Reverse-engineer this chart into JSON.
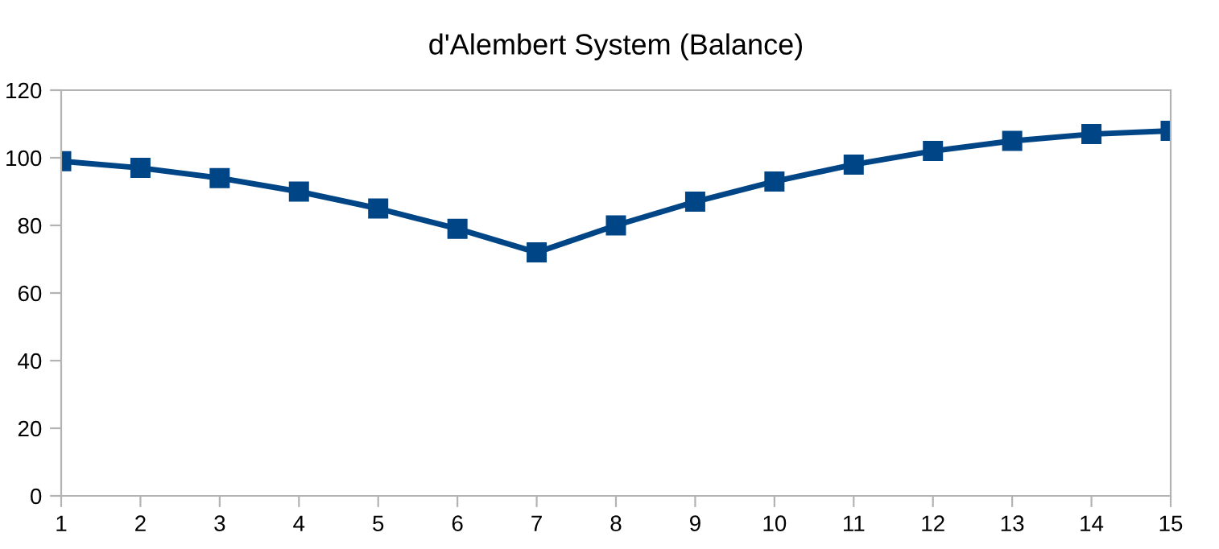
{
  "chart_data": {
    "type": "line",
    "title": "d'Alembert System (Balance)",
    "x": [
      1,
      2,
      3,
      4,
      5,
      6,
      7,
      8,
      9,
      10,
      11,
      12,
      13,
      14,
      15
    ],
    "series": [
      {
        "color": "#004586",
        "values": [
          99,
          97,
          94,
          90,
          85,
          79,
          72,
          80,
          87,
          93,
          98,
          102,
          105,
          107,
          108
        ]
      }
    ],
    "xlim": [
      1,
      15
    ],
    "xticks": [
      1,
      2,
      3,
      4,
      5,
      6,
      7,
      8,
      9,
      10,
      11,
      12,
      13,
      14,
      15
    ],
    "ylim": [
      0,
      120
    ],
    "yticks": [
      0,
      20,
      40,
      60,
      80,
      100,
      120
    ],
    "grid": false,
    "marker": "square",
    "line_style": "solid"
  }
}
